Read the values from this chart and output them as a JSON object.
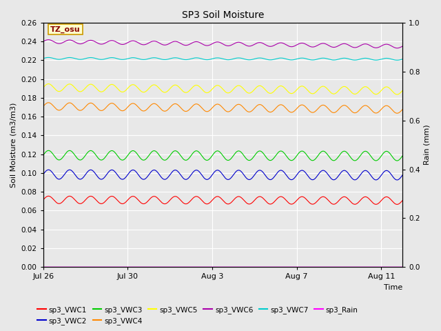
{
  "title": "SP3 Soil Moisture",
  "xlabel": "Time",
  "ylabel_left": "Soil Moisture (m3/m3)",
  "ylabel_right": "Rain (mm)",
  "xlim_days": [
    0,
    17
  ],
  "ylim_left": [
    0.0,
    0.26
  ],
  "ylim_right": [
    0.0,
    1.0
  ],
  "x_ticks_labels": [
    "Jul 26",
    "Jul 30",
    "Aug 3",
    "Aug 7",
    "Aug 11"
  ],
  "x_ticks_pos": [
    0,
    4,
    8,
    12,
    16
  ],
  "y_ticks_left": [
    0.0,
    0.02,
    0.04,
    0.06,
    0.08,
    0.1,
    0.12,
    0.14,
    0.16,
    0.18,
    0.2,
    0.22,
    0.24,
    0.26
  ],
  "y_ticks_right": [
    0.0,
    0.2,
    0.4,
    0.6,
    0.8,
    1.0
  ],
  "annotation_text": "TZ_osu",
  "annotation_bg": "#ffffcc",
  "annotation_border": "#cc9900",
  "series": [
    {
      "name": "sp3_VWC1",
      "color": "#ff0000",
      "base": 0.0715,
      "amp": 0.004,
      "period": 1.0,
      "trend": -5e-05
    },
    {
      "name": "sp3_VWC2",
      "color": "#0000cc",
      "base": 0.0985,
      "amp": 0.005,
      "period": 1.0,
      "trend": -5e-05
    },
    {
      "name": "sp3_VWC3",
      "color": "#00cc00",
      "base": 0.119,
      "amp": 0.005,
      "period": 1.0,
      "trend": -5e-05
    },
    {
      "name": "sp3_VWC4",
      "color": "#ff8800",
      "base": 0.171,
      "amp": 0.004,
      "period": 1.0,
      "trend": -0.0002
    },
    {
      "name": "sp3_VWC5",
      "color": "#ffff00",
      "base": 0.191,
      "amp": 0.004,
      "period": 1.0,
      "trend": -0.0002
    },
    {
      "name": "sp3_VWC6",
      "color": "#aa00aa",
      "base": 0.24,
      "amp": 0.002,
      "period": 1.0,
      "trend": -0.0003
    },
    {
      "name": "sp3_VWC7",
      "color": "#00cccc",
      "base": 0.222,
      "amp": 0.001,
      "period": 1.0,
      "trend": -5e-05
    },
    {
      "name": "sp3_Rain",
      "color": "#ff00ff",
      "base": 0.0,
      "amp": 0.0,
      "period": 1.0,
      "trend": 0.0
    }
  ],
  "n_points": 2000,
  "background_color": "#e8e8e8",
  "plot_bg_color": "#e8e8e8",
  "grid_color": "#ffffff"
}
